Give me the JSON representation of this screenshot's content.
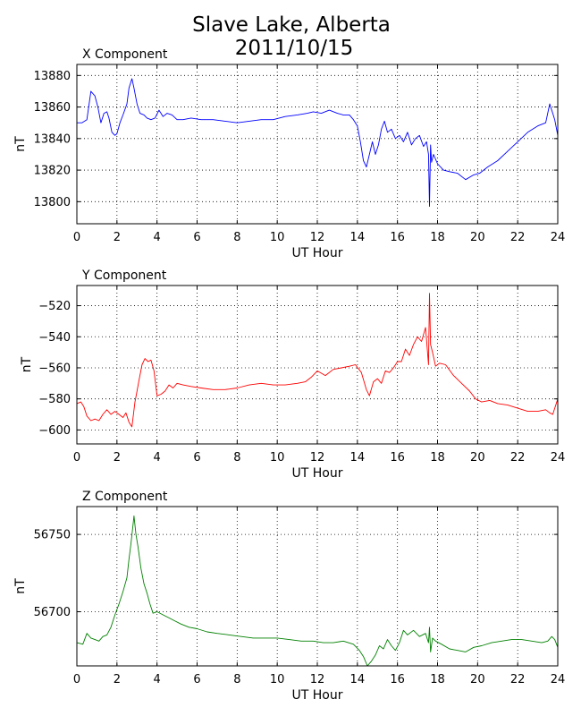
{
  "figure": {
    "title_line1": "Slave Lake, Alberta",
    "title_line2": "2011/10/15"
  },
  "chart_data": [
    {
      "type": "line",
      "title": "X Component",
      "xlabel": "UT Hour",
      "ylabel": "nT",
      "xlim": [
        0,
        24
      ],
      "ylim": [
        13786,
        13887
      ],
      "xticks": [
        0,
        2,
        4,
        6,
        8,
        10,
        12,
        14,
        16,
        18,
        20,
        22,
        24
      ],
      "yticks": [
        13800,
        13820,
        13840,
        13860,
        13880
      ],
      "grid": true,
      "color": "#0000ff",
      "series": [
        {
          "x": [
            0,
            0.25,
            0.5,
            0.7,
            0.9,
            1.05,
            1.2,
            1.35,
            1.5,
            1.6,
            1.75,
            1.9,
            2.0,
            2.15,
            2.3,
            2.5,
            2.6,
            2.75,
            2.85,
            3.0,
            3.15,
            3.35,
            3.5,
            3.7,
            3.9,
            4.1,
            4.3,
            4.5,
            4.75,
            5.0,
            5.3,
            5.7,
            6.2,
            6.8,
            7.4,
            8.0,
            8.6,
            9.2,
            9.8,
            10.4,
            11.0,
            11.5,
            11.8,
            12.2,
            12.6,
            13.0,
            13.3,
            13.6,
            13.8,
            14.0,
            14.15,
            14.3,
            14.45,
            14.6,
            14.75,
            14.9,
            15.05,
            15.2,
            15.35,
            15.5,
            15.7,
            15.9,
            16.1,
            16.3,
            16.5,
            16.7,
            16.9,
            17.1,
            17.3,
            17.45,
            17.55,
            17.6,
            17.65,
            17.7,
            17.8,
            18.0,
            18.3,
            18.6,
            19.0,
            19.4,
            19.8,
            20.1,
            20.5,
            21.0,
            21.5,
            22.0,
            22.5,
            23.0,
            23.4,
            23.6,
            23.75,
            23.85,
            24.0
          ],
          "y": [
            13850,
            13850,
            13852,
            13870,
            13867,
            13860,
            13850,
            13856,
            13857,
            13853,
            13844,
            13842,
            13843,
            13850,
            13855,
            13862,
            13872,
            13878,
            13872,
            13862,
            13856,
            13855,
            13853,
            13852,
            13853,
            13858,
            13854,
            13856,
            13855,
            13852,
            13852,
            13853,
            13852,
            13852,
            13851,
            13850,
            13851,
            13852,
            13852,
            13854,
            13855,
            13856,
            13857,
            13856,
            13858,
            13856,
            13855,
            13855,
            13852,
            13848,
            13838,
            13826,
            13822,
            13830,
            13838,
            13830,
            13836,
            13846,
            13851,
            13844,
            13846,
            13840,
            13842,
            13838,
            13844,
            13836,
            13840,
            13842,
            13835,
            13838,
            13830,
            13797,
            13836,
            13825,
            13830,
            13824,
            13820,
            13819,
            13818,
            13814,
            13817,
            13818,
            13822,
            13826,
            13832,
            13838,
            13844,
            13848,
            13850,
            13862,
            13856,
            13852,
            13842
          ]
        }
      ]
    },
    {
      "type": "line",
      "title": "Y Component",
      "xlabel": "UT Hour",
      "ylabel": "nT",
      "xlim": [
        0,
        24
      ],
      "ylim": [
        -609,
        -507
      ],
      "xticks": [
        0,
        2,
        4,
        6,
        8,
        10,
        12,
        14,
        16,
        18,
        20,
        22,
        24
      ],
      "yticks": [
        -600,
        -580,
        -560,
        -540,
        -520
      ],
      "grid": true,
      "color": "#ff0000",
      "series": [
        {
          "x": [
            0,
            0.2,
            0.35,
            0.5,
            0.7,
            0.9,
            1.1,
            1.3,
            1.5,
            1.7,
            1.9,
            2.1,
            2.3,
            2.45,
            2.6,
            2.75,
            2.9,
            3.0,
            3.1,
            3.25,
            3.4,
            3.55,
            3.7,
            3.85,
            4.0,
            4.2,
            4.4,
            4.6,
            4.8,
            5.0,
            5.3,
            5.7,
            6.2,
            6.8,
            7.4,
            8.0,
            8.6,
            9.2,
            9.8,
            10.4,
            11.0,
            11.4,
            11.7,
            12.0,
            12.4,
            12.8,
            13.2,
            13.6,
            13.9,
            14.2,
            14.45,
            14.6,
            14.8,
            15.0,
            15.2,
            15.4,
            15.6,
            15.8,
            16.0,
            16.2,
            16.4,
            16.6,
            16.8,
            17.0,
            17.2,
            17.4,
            17.55,
            17.6,
            17.65,
            17.75,
            17.9,
            18.1,
            18.4,
            18.8,
            19.2,
            19.6,
            19.9,
            20.2,
            20.6,
            21.0,
            21.5,
            22.0,
            22.5,
            23.0,
            23.4,
            23.6,
            23.75,
            24.0
          ],
          "y": [
            -583,
            -582,
            -585,
            -591,
            -594,
            -593,
            -594,
            -590,
            -587,
            -590,
            -588,
            -590,
            -592,
            -589,
            -595,
            -598,
            -582,
            -575,
            -568,
            -558,
            -554,
            -556,
            -555,
            -562,
            -578,
            -577,
            -575,
            -571,
            -573,
            -570,
            -571,
            -572,
            -573,
            -574,
            -574,
            -573,
            -571,
            -570,
            -571,
            -571,
            -570,
            -569,
            -566,
            -562,
            -565,
            -561,
            -560,
            -559,
            -558,
            -563,
            -574,
            -578,
            -569,
            -567,
            -570,
            -562,
            -563,
            -560,
            -556,
            -556,
            -548,
            -552,
            -545,
            -540,
            -543,
            -534,
            -558,
            -512,
            -545,
            -550,
            -559,
            -557,
            -558,
            -565,
            -570,
            -575,
            -580,
            -582,
            -581,
            -583,
            -584,
            -586,
            -588,
            -588,
            -587,
            -589,
            -590,
            -580
          ]
        }
      ]
    },
    {
      "type": "line",
      "title": "Z Component",
      "xlabel": "UT Hour",
      "ylabel": "nT",
      "xlim": [
        0,
        24
      ],
      "ylim": [
        56665,
        56768
      ],
      "xticks": [
        0,
        2,
        4,
        6,
        8,
        10,
        12,
        14,
        16,
        18,
        20,
        22,
        24
      ],
      "yticks": [
        56700,
        56750
      ],
      "grid": true,
      "color": "#008000",
      "series": [
        {
          "x": [
            0,
            0.3,
            0.5,
            0.7,
            0.9,
            1.1,
            1.3,
            1.5,
            1.7,
            1.9,
            2.1,
            2.3,
            2.5,
            2.6,
            2.7,
            2.8,
            2.85,
            2.95,
            3.05,
            3.2,
            3.35,
            3.5,
            3.65,
            3.8,
            4.0,
            4.3,
            4.6,
            4.9,
            5.2,
            5.6,
            6.0,
            6.5,
            7.0,
            7.6,
            8.2,
            8.8,
            9.4,
            10.0,
            10.6,
            11.2,
            11.8,
            12.3,
            12.8,
            13.3,
            13.8,
            14.1,
            14.3,
            14.5,
            14.7,
            14.9,
            15.1,
            15.3,
            15.5,
            15.7,
            15.9,
            16.1,
            16.3,
            16.5,
            16.8,
            17.1,
            17.4,
            17.55,
            17.6,
            17.65,
            17.75,
            17.9,
            18.2,
            18.6,
            19.0,
            19.4,
            19.8,
            20.2,
            20.7,
            21.2,
            21.7,
            22.2,
            22.7,
            23.2,
            23.5,
            23.7,
            23.85,
            24.0
          ],
          "y": [
            56680,
            56679,
            56686,
            56683,
            56682,
            56681,
            56684,
            56685,
            56690,
            56698,
            56705,
            56713,
            56722,
            56734,
            56744,
            56756,
            56762,
            56750,
            56742,
            56728,
            56718,
            56712,
            56705,
            56699,
            56700,
            56698,
            56696,
            56694,
            56692,
            56690,
            56689,
            56687,
            56686,
            56685,
            56684,
            56683,
            56683,
            56683,
            56682,
            56681,
            56681,
            56680,
            56680,
            56681,
            56679,
            56675,
            56671,
            56665,
            56668,
            56672,
            56678,
            56676,
            56682,
            56678,
            56675,
            56680,
            56688,
            56685,
            56688,
            56684,
            56686,
            56680,
            56690,
            56674,
            56683,
            56681,
            56679,
            56676,
            56675,
            56674,
            56677,
            56678,
            56680,
            56681,
            56682,
            56682,
            56681,
            56680,
            56681,
            56684,
            56682,
            56677
          ]
        }
      ]
    }
  ]
}
